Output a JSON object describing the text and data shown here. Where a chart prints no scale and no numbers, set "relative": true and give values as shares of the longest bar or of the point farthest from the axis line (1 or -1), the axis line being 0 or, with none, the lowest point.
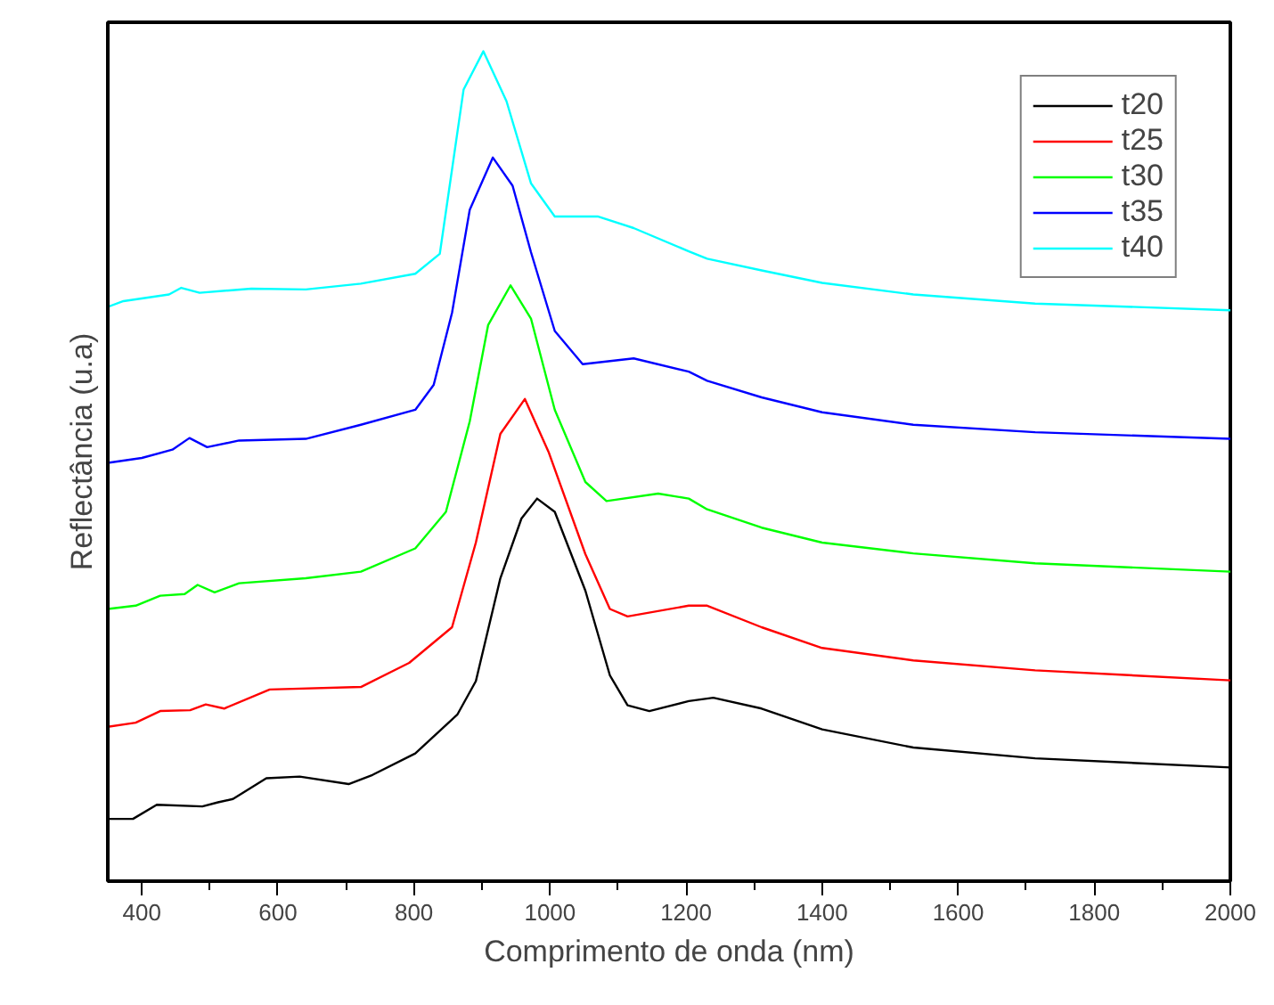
{
  "chart_data": {
    "type": "line",
    "relative": true,
    "xlabel": "Comprimento de onda (nm)",
    "ylabel": "Reflectância (u.a)",
    "xlim": [
      350,
      2000
    ],
    "xticks": [
      400,
      600,
      800,
      1000,
      1200,
      1400,
      1600,
      1800,
      2000
    ],
    "legend": "top right",
    "grid": false,
    "marker": "none",
    "line_style": "solid",
    "series": [
      {
        "name": "t20",
        "color": "#000000",
        "x": [
          350,
          387,
          422,
          489,
          512,
          534,
          583,
          632,
          704,
          739,
          802,
          864,
          891,
          927,
          958,
          981,
          1007,
          1052,
          1088,
          1114,
          1146,
          1204,
          1240,
          1311,
          1400,
          1534,
          1713,
          2000
        ],
        "values": [
          0.075,
          0.075,
          0.092,
          0.09,
          0.095,
          0.099,
          0.124,
          0.126,
          0.117,
          0.128,
          0.154,
          0.201,
          0.241,
          0.365,
          0.437,
          0.461,
          0.445,
          0.35,
          0.248,
          0.212,
          0.205,
          0.217,
          0.221,
          0.208,
          0.183,
          0.161,
          0.148,
          0.137
        ]
      },
      {
        "name": "t25",
        "color": "#ff0000",
        "x": [
          350,
          391,
          427,
          471,
          494,
          521,
          588,
          722,
          793,
          856,
          891,
          927,
          963,
          998,
          1052,
          1088,
          1114,
          1204,
          1231,
          1311,
          1400,
          1534,
          1713,
          2000
        ],
        "values": [
          0.186,
          0.191,
          0.205,
          0.206,
          0.213,
          0.208,
          0.231,
          0.234,
          0.263,
          0.306,
          0.408,
          0.539,
          0.581,
          0.517,
          0.394,
          0.328,
          0.319,
          0.332,
          0.332,
          0.306,
          0.281,
          0.266,
          0.254,
          0.242
        ]
      },
      {
        "name": "t30",
        "color": "#00ff00",
        "x": [
          350,
          391,
          427,
          463,
          482,
          507,
          543,
          641,
          722,
          802,
          847,
          882,
          909,
          942,
          972,
          1007,
          1052,
          1083,
          1159,
          1204,
          1231,
          1311,
          1400,
          1534,
          1713,
          2000
        ],
        "values": [
          0.328,
          0.332,
          0.344,
          0.346,
          0.357,
          0.348,
          0.359,
          0.365,
          0.373,
          0.401,
          0.445,
          0.554,
          0.67,
          0.718,
          0.678,
          0.568,
          0.481,
          0.458,
          0.467,
          0.461,
          0.448,
          0.426,
          0.408,
          0.395,
          0.383,
          0.373
        ]
      },
      {
        "name": "t35",
        "color": "#0000ff",
        "x": [
          350,
          400,
          445,
          470,
          496,
          543,
          641,
          722,
          802,
          829,
          856,
          882,
          916,
          945,
          972,
          1007,
          1048,
          1123,
          1204,
          1231,
          1311,
          1400,
          1534,
          1713,
          2000
        ],
        "values": [
          0.504,
          0.51,
          0.52,
          0.534,
          0.523,
          0.531,
          0.533,
          0.55,
          0.568,
          0.598,
          0.685,
          0.809,
          0.872,
          0.838,
          0.758,
          0.663,
          0.623,
          0.63,
          0.614,
          0.603,
          0.583,
          0.565,
          0.55,
          0.541,
          0.533
        ]
      },
      {
        "name": "t40",
        "color": "#00ffff",
        "x": [
          350,
          373,
          440,
          458,
          485,
          561,
          641,
          722,
          802,
          838,
          873,
          902,
          936,
          972,
          1007,
          1070,
          1123,
          1204,
          1231,
          1311,
          1400,
          1534,
          1713,
          2000
        ],
        "values": [
          0.692,
          0.699,
          0.707,
          0.715,
          0.709,
          0.714,
          0.713,
          0.72,
          0.732,
          0.756,
          0.954,
          1.0,
          0.94,
          0.841,
          0.801,
          0.801,
          0.787,
          0.759,
          0.75,
          0.736,
          0.721,
          0.707,
          0.696,
          0.688
        ]
      }
    ]
  }
}
